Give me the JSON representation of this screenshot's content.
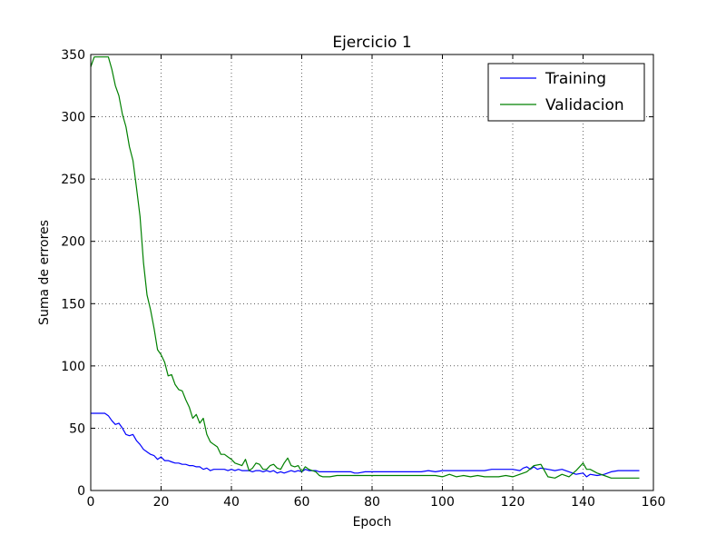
{
  "chart_data": {
    "type": "line",
    "title": "Ejercicio 1",
    "xlabel": "Epoch",
    "ylabel": "Suma de errores",
    "xlim": [
      0,
      160
    ],
    "ylim": [
      0,
      350
    ],
    "xticks": [
      0,
      20,
      40,
      60,
      80,
      100,
      120,
      140,
      160
    ],
    "yticks": [
      0,
      50,
      100,
      150,
      200,
      250,
      300,
      350
    ],
    "grid": true,
    "legend_position": "top-right",
    "series": [
      {
        "name": "Training",
        "color": "#0000ff",
        "x": [
          0,
          1,
          2,
          3,
          4,
          5,
          6,
          7,
          8,
          9,
          10,
          11,
          12,
          13,
          14,
          15,
          16,
          17,
          18,
          19,
          20,
          21,
          22,
          23,
          24,
          25,
          26,
          27,
          28,
          29,
          30,
          31,
          32,
          33,
          34,
          35,
          36,
          37,
          38,
          39,
          40,
          41,
          42,
          43,
          44,
          45,
          46,
          47,
          48,
          49,
          50,
          51,
          52,
          53,
          54,
          55,
          56,
          57,
          58,
          59,
          60,
          61,
          62,
          63,
          64,
          65,
          66,
          67,
          68,
          69,
          70,
          72,
          74,
          75,
          76,
          78,
          80,
          85,
          90,
          92,
          94,
          96,
          98,
          100,
          102,
          104,
          106,
          108,
          110,
          112,
          114,
          116,
          118,
          120,
          122,
          123,
          124,
          125,
          126,
          127,
          128,
          130,
          132,
          134,
          136,
          138,
          140,
          141,
          142,
          144,
          146,
          148,
          150,
          152,
          154,
          156
        ],
        "y": [
          62,
          62,
          62,
          62,
          62,
          60,
          56,
          53,
          54,
          50,
          45,
          44,
          45,
          40,
          37,
          33,
          31,
          29,
          28,
          25,
          27,
          24,
          24,
          23,
          22,
          22,
          21,
          21,
          20,
          20,
          19,
          19,
          17,
          18,
          16,
          17,
          17,
          17,
          17,
          16,
          17,
          16,
          17,
          16,
          16,
          16,
          15,
          16,
          16,
          15,
          16,
          15,
          16,
          14,
          15,
          14,
          15,
          16,
          15,
          16,
          15,
          17,
          16,
          16,
          16,
          15,
          15,
          15,
          15,
          15,
          15,
          15,
          15,
          14,
          14,
          15,
          15,
          15,
          15,
          15,
          15,
          16,
          15,
          16,
          16,
          16,
          16,
          16,
          16,
          16,
          17,
          17,
          17,
          17,
          16,
          18,
          19,
          17,
          19,
          17,
          18,
          17,
          16,
          17,
          15,
          13,
          14,
          11,
          13,
          12,
          13,
          15,
          16,
          16,
          16,
          16
        ]
      },
      {
        "name": "Validacion",
        "color": "#008000",
        "x": [
          0,
          0.5,
          1,
          2,
          3,
          4,
          5,
          6,
          7,
          8,
          9,
          10,
          11,
          12,
          13,
          14,
          15,
          16,
          17,
          18,
          19,
          20,
          21,
          22,
          23,
          24,
          25,
          26,
          27,
          28,
          29,
          30,
          31,
          32,
          33,
          34,
          35,
          36,
          37,
          38,
          39,
          40,
          41,
          42,
          43,
          44,
          45,
          46,
          47,
          48,
          49,
          50,
          51,
          52,
          53,
          54,
          55,
          56,
          57,
          58,
          59,
          60,
          61,
          62,
          63,
          64,
          65,
          66,
          67,
          68,
          70,
          75,
          80,
          85,
          90,
          95,
          98,
          100,
          102,
          104,
          106,
          108,
          110,
          112,
          114,
          116,
          118,
          120,
          122,
          124,
          126,
          128,
          130,
          132,
          134,
          136,
          138,
          140,
          141,
          142,
          144,
          146,
          148,
          150,
          152,
          154,
          156
        ],
        "y": [
          340,
          344,
          348,
          348,
          348,
          348,
          348,
          338,
          325,
          317,
          302,
          292,
          276,
          265,
          243,
          220,
          183,
          157,
          145,
          130,
          113,
          109,
          103,
          92,
          93,
          85,
          81,
          80,
          73,
          67,
          58,
          61,
          54,
          58,
          45,
          39,
          37,
          35,
          29,
          29,
          27,
          25,
          22,
          21,
          20,
          25,
          16,
          18,
          22,
          21,
          17,
          17,
          20,
          21,
          18,
          17,
          22,
          26,
          20,
          19,
          20,
          15,
          19,
          17,
          16,
          15,
          12,
          11,
          11,
          11,
          12,
          12,
          12,
          12,
          12,
          12,
          12,
          11,
          13,
          11,
          12,
          11,
          12,
          11,
          11,
          11,
          12,
          11,
          13,
          15,
          20,
          21,
          11,
          10,
          13,
          11,
          16,
          22,
          17,
          17,
          14,
          12,
          10,
          10,
          10,
          10,
          10
        ]
      }
    ]
  }
}
